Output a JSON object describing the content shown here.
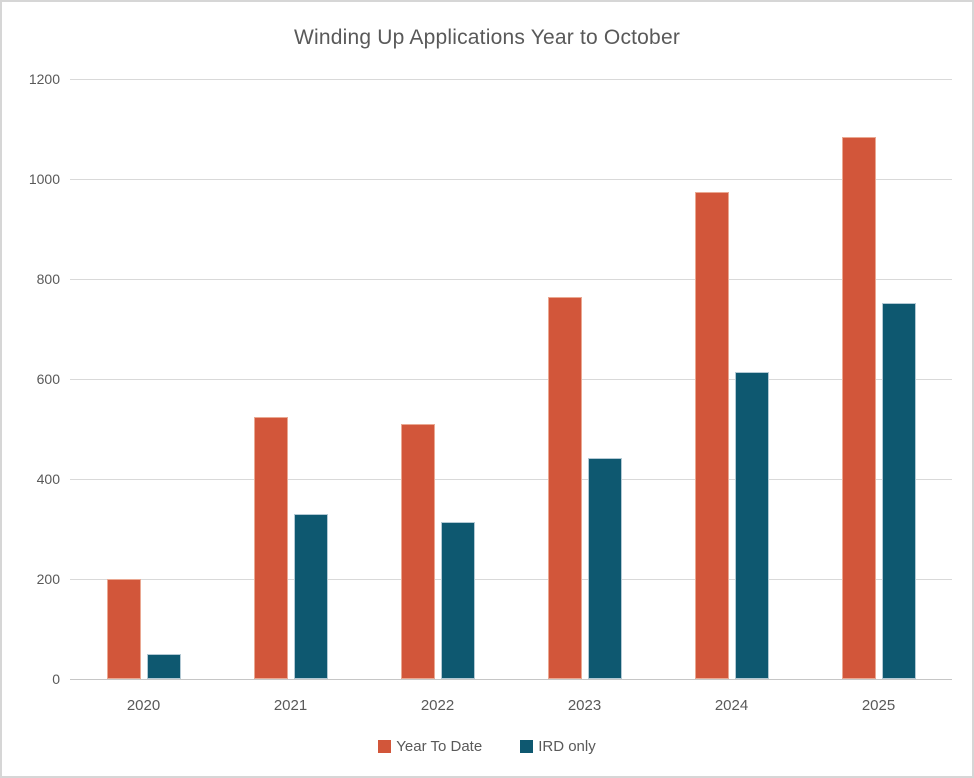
{
  "title": "Winding Up Applications Year to October",
  "colors": {
    "series_year_to_date": "#d2563a",
    "series_ird_only": "#0e5870",
    "gridline": "#d9d9d9",
    "axis_text": "#595959",
    "frame_border": "#d6d6d6",
    "background": "#ffffff"
  },
  "chart_data": {
    "type": "bar",
    "title": "Winding Up Applications Year to October",
    "categories": [
      "2020",
      "2021",
      "2022",
      "2023",
      "2024",
      "2025"
    ],
    "series": [
      {
        "name": "Year To Date",
        "color": "#d2563a",
        "values": [
          200,
          525,
          511,
          765,
          975,
          1085
        ]
      },
      {
        "name": "IRD only",
        "color": "#0e5870",
        "values": [
          50,
          330,
          315,
          442,
          615,
          752
        ]
      }
    ],
    "xlabel": "",
    "ylabel": "",
    "ylim": [
      0,
      1200
    ],
    "yticks": [
      0,
      200,
      400,
      600,
      800,
      1000,
      1200
    ],
    "grid": true,
    "legend_position": "bottom"
  }
}
